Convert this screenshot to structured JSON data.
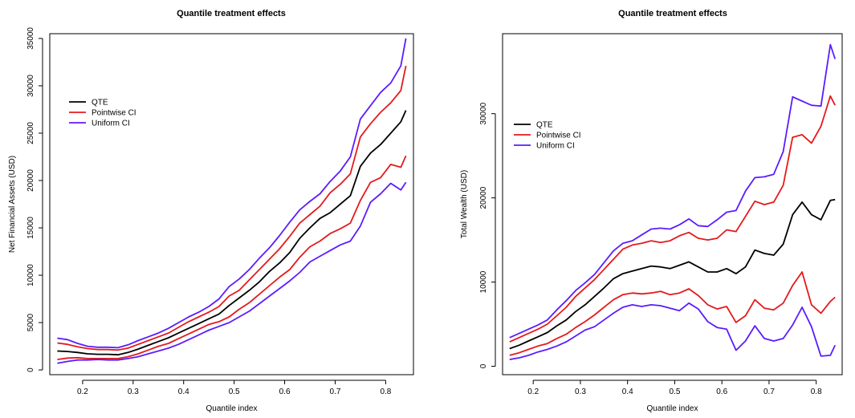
{
  "colors": {
    "qte": "#000000",
    "pointwise": "#e41a1c",
    "uniform": "#5b1cff"
  },
  "chart_data": [
    {
      "type": "line",
      "title": "Quantile treatment effects",
      "xlabel": "Quantile index",
      "ylabel": "Net Financial Assets (USD)",
      "xlim": [
        0.135,
        0.855
      ],
      "ylim": [
        -500,
        35500
      ],
      "xticks": [
        0.2,
        0.3,
        0.4,
        0.5,
        0.6,
        0.7,
        0.8
      ],
      "xtick_labels": [
        "0.2",
        "0.3",
        "0.4",
        "0.5",
        "0.6",
        "0.7",
        "0.8"
      ],
      "yticks": [
        0,
        5000,
        10000,
        15000,
        20000,
        25000,
        30000,
        35000
      ],
      "ytick_labels": [
        "0",
        "5000",
        "10000",
        "15000",
        "20000",
        "25000",
        "30000",
        "35000"
      ],
      "legend": {
        "position": "top-left",
        "entries": [
          "QTE",
          "Pointwise CI",
          "Uniform CI"
        ]
      },
      "series": [
        {
          "name": "QTE",
          "x": [
            0.15,
            0.17,
            0.19,
            0.21,
            0.23,
            0.25,
            0.27,
            0.29,
            0.31,
            0.33,
            0.35,
            0.37,
            0.39,
            0.41,
            0.43,
            0.45,
            0.47,
            0.49,
            0.51,
            0.53,
            0.55,
            0.57,
            0.59,
            0.61,
            0.63,
            0.65,
            0.67,
            0.69,
            0.71,
            0.73,
            0.75,
            0.77,
            0.79,
            0.81,
            0.83,
            0.84
          ],
          "values": [
            2000,
            1950,
            1850,
            1700,
            1650,
            1650,
            1600,
            1850,
            2200,
            2600,
            3000,
            3400,
            3900,
            4400,
            4900,
            5400,
            5900,
            6800,
            7600,
            8400,
            9300,
            10400,
            11300,
            12400,
            13900,
            15000,
            16000,
            16600,
            17500,
            18400,
            21500,
            22900,
            23800,
            25000,
            26200,
            27400
          ]
        },
        {
          "name": "Pointwise CI",
          "x": [
            0.15,
            0.17,
            0.19,
            0.21,
            0.23,
            0.25,
            0.27,
            0.29,
            0.31,
            0.33,
            0.35,
            0.37,
            0.39,
            0.41,
            0.43,
            0.45,
            0.47,
            0.49,
            0.51,
            0.53,
            0.55,
            0.57,
            0.59,
            0.61,
            0.63,
            0.65,
            0.67,
            0.69,
            0.71,
            0.73,
            0.75,
            0.77,
            0.79,
            0.81,
            0.83,
            0.84
          ],
          "values": [
            2850,
            2700,
            2450,
            2250,
            2150,
            2150,
            2100,
            2300,
            2700,
            3100,
            3500,
            3900,
            4500,
            5100,
            5600,
            6100,
            6700,
            7800,
            8400,
            9500,
            10600,
            11700,
            12800,
            14100,
            15500,
            16400,
            17300,
            18700,
            19600,
            20700,
            24600,
            26000,
            27200,
            28200,
            29500,
            32100
          ]
        },
        {
          "name": "Pointwise CI",
          "x": [
            0.15,
            0.17,
            0.19,
            0.21,
            0.23,
            0.25,
            0.27,
            0.29,
            0.31,
            0.33,
            0.35,
            0.37,
            0.39,
            0.41,
            0.43,
            0.45,
            0.47,
            0.49,
            0.51,
            0.53,
            0.55,
            0.57,
            0.59,
            0.61,
            0.63,
            0.65,
            0.67,
            0.69,
            0.71,
            0.73,
            0.75,
            0.77,
            0.79,
            0.81,
            0.83,
            0.84
          ],
          "values": [
            1100,
            1250,
            1300,
            1200,
            1200,
            1200,
            1200,
            1400,
            1700,
            2100,
            2500,
            2800,
            3300,
            3800,
            4300,
            4800,
            5100,
            5600,
            6400,
            7100,
            8000,
            8900,
            9800,
            10600,
            11900,
            13000,
            13600,
            14400,
            14900,
            15500,
            17900,
            19800,
            20300,
            21700,
            21400,
            22600
          ]
        },
        {
          "name": "Uniform CI",
          "x": [
            0.15,
            0.17,
            0.19,
            0.21,
            0.23,
            0.25,
            0.27,
            0.29,
            0.31,
            0.33,
            0.35,
            0.37,
            0.39,
            0.41,
            0.43,
            0.45,
            0.47,
            0.49,
            0.51,
            0.53,
            0.55,
            0.57,
            0.59,
            0.61,
            0.63,
            0.65,
            0.67,
            0.69,
            0.71,
            0.73,
            0.75,
            0.77,
            0.79,
            0.81,
            0.83,
            0.84
          ],
          "values": [
            3350,
            3200,
            2800,
            2500,
            2400,
            2400,
            2350,
            2650,
            3100,
            3500,
            3900,
            4400,
            5000,
            5600,
            6100,
            6700,
            7500,
            8800,
            9600,
            10600,
            11800,
            12900,
            14200,
            15600,
            16900,
            17800,
            18600,
            19900,
            21000,
            22500,
            26500,
            27900,
            29300,
            30300,
            32100,
            35000
          ]
        },
        {
          "name": "Uniform CI",
          "x": [
            0.15,
            0.17,
            0.19,
            0.21,
            0.23,
            0.25,
            0.27,
            0.29,
            0.31,
            0.33,
            0.35,
            0.37,
            0.39,
            0.41,
            0.43,
            0.45,
            0.47,
            0.49,
            0.51,
            0.53,
            0.55,
            0.57,
            0.59,
            0.61,
            0.63,
            0.65,
            0.67,
            0.69,
            0.71,
            0.73,
            0.75,
            0.77,
            0.79,
            0.81,
            0.83,
            0.84
          ],
          "values": [
            700,
            900,
            1050,
            1050,
            1100,
            1050,
            1050,
            1200,
            1400,
            1700,
            2000,
            2300,
            2700,
            3200,
            3700,
            4200,
            4600,
            5000,
            5600,
            6200,
            7000,
            7800,
            8600,
            9400,
            10300,
            11400,
            12000,
            12600,
            13200,
            13600,
            15200,
            17700,
            18600,
            19700,
            19000,
            19800
          ]
        }
      ]
    },
    {
      "type": "line",
      "title": "Quantile treatment effects",
      "xlabel": "Quantile index",
      "ylabel": "Total Wealth (USD)",
      "xlim": [
        0.135,
        0.855
      ],
      "ylim": [
        -1000,
        39500
      ],
      "xticks": [
        0.2,
        0.3,
        0.4,
        0.5,
        0.6,
        0.7,
        0.8
      ],
      "xtick_labels": [
        "0.2",
        "0.3",
        "0.4",
        "0.5",
        "0.6",
        "0.7",
        "0.8"
      ],
      "yticks": [
        0,
        10000,
        20000,
        30000
      ],
      "ytick_labels": [
        "0",
        "10000",
        "20000",
        "30000"
      ],
      "legend": {
        "position": "top-left",
        "entries": [
          "QTE",
          "Pointwise CI",
          "Uniform CI"
        ]
      },
      "series": [
        {
          "name": "QTE",
          "x": [
            0.15,
            0.17,
            0.19,
            0.21,
            0.23,
            0.25,
            0.27,
            0.29,
            0.31,
            0.33,
            0.35,
            0.37,
            0.39,
            0.41,
            0.43,
            0.45,
            0.47,
            0.49,
            0.51,
            0.53,
            0.55,
            0.57,
            0.59,
            0.61,
            0.63,
            0.65,
            0.67,
            0.69,
            0.71,
            0.73,
            0.75,
            0.77,
            0.79,
            0.81,
            0.83,
            0.84
          ],
          "values": [
            2100,
            2500,
            3000,
            3500,
            4000,
            4800,
            5500,
            6500,
            7300,
            8300,
            9300,
            10400,
            11000,
            11300,
            11600,
            11900,
            11800,
            11600,
            12000,
            12400,
            11800,
            11200,
            11200,
            11600,
            11000,
            11800,
            13800,
            13400,
            13200,
            14500,
            18000,
            19500,
            18000,
            17400,
            19700,
            19800
          ]
        },
        {
          "name": "Pointwise CI",
          "x": [
            0.15,
            0.17,
            0.19,
            0.21,
            0.23,
            0.25,
            0.27,
            0.29,
            0.31,
            0.33,
            0.35,
            0.37,
            0.39,
            0.41,
            0.43,
            0.45,
            0.47,
            0.49,
            0.51,
            0.53,
            0.55,
            0.57,
            0.59,
            0.61,
            0.63,
            0.65,
            0.67,
            0.69,
            0.71,
            0.73,
            0.75,
            0.77,
            0.79,
            0.81,
            0.83,
            0.84
          ],
          "values": [
            2900,
            3400,
            3900,
            4400,
            5000,
            6000,
            7000,
            8300,
            9300,
            10300,
            11500,
            12700,
            13900,
            14400,
            14600,
            14900,
            14700,
            14900,
            15500,
            15900,
            15200,
            15000,
            15200,
            16200,
            16000,
            17800,
            19600,
            19200,
            19500,
            21500,
            27200,
            27500,
            26500,
            28500,
            32100,
            31000
          ]
        },
        {
          "name": "Pointwise CI",
          "x": [
            0.15,
            0.17,
            0.19,
            0.21,
            0.23,
            0.25,
            0.27,
            0.29,
            0.31,
            0.33,
            0.35,
            0.37,
            0.39,
            0.41,
            0.43,
            0.45,
            0.47,
            0.49,
            0.51,
            0.53,
            0.55,
            0.57,
            0.59,
            0.61,
            0.63,
            0.65,
            0.67,
            0.69,
            0.71,
            0.73,
            0.75,
            0.77,
            0.79,
            0.81,
            0.83,
            0.84
          ],
          "values": [
            1300,
            1600,
            2000,
            2400,
            2700,
            3300,
            3800,
            4600,
            5300,
            6100,
            7000,
            7900,
            8500,
            8700,
            8600,
            8700,
            8900,
            8500,
            8700,
            9200,
            8400,
            7300,
            6800,
            7100,
            5200,
            6000,
            7900,
            6900,
            6700,
            7500,
            9600,
            11200,
            7300,
            6300,
            7700,
            8200
          ]
        },
        {
          "name": "Uniform CI",
          "x": [
            0.15,
            0.17,
            0.19,
            0.21,
            0.23,
            0.25,
            0.27,
            0.29,
            0.31,
            0.33,
            0.35,
            0.37,
            0.39,
            0.41,
            0.43,
            0.45,
            0.47,
            0.49,
            0.51,
            0.53,
            0.55,
            0.57,
            0.59,
            0.61,
            0.63,
            0.65,
            0.67,
            0.69,
            0.71,
            0.73,
            0.75,
            0.77,
            0.79,
            0.81,
            0.83,
            0.84
          ],
          "values": [
            3400,
            3900,
            4400,
            4900,
            5500,
            6700,
            7800,
            9000,
            9900,
            10900,
            12300,
            13700,
            14600,
            14900,
            15600,
            16300,
            16400,
            16300,
            16800,
            17500,
            16700,
            16600,
            17400,
            18300,
            18500,
            20800,
            22400,
            22500,
            22800,
            25500,
            32000,
            31500,
            31000,
            30900,
            38200,
            36500
          ]
        },
        {
          "name": "Uniform CI",
          "x": [
            0.15,
            0.17,
            0.19,
            0.21,
            0.23,
            0.25,
            0.27,
            0.29,
            0.31,
            0.33,
            0.35,
            0.37,
            0.39,
            0.41,
            0.43,
            0.45,
            0.47,
            0.49,
            0.51,
            0.53,
            0.55,
            0.57,
            0.59,
            0.61,
            0.63,
            0.65,
            0.67,
            0.69,
            0.71,
            0.73,
            0.75,
            0.77,
            0.79,
            0.81,
            0.83,
            0.84
          ],
          "values": [
            800,
            1000,
            1300,
            1700,
            2000,
            2400,
            2900,
            3600,
            4300,
            4700,
            5500,
            6300,
            7000,
            7300,
            7100,
            7300,
            7200,
            6900,
            6600,
            7500,
            6800,
            5300,
            4600,
            4400,
            1900,
            3000,
            4800,
            3300,
            3000,
            3300,
            4900,
            7000,
            4700,
            1200,
            1300,
            2500
          ]
        }
      ]
    }
  ]
}
